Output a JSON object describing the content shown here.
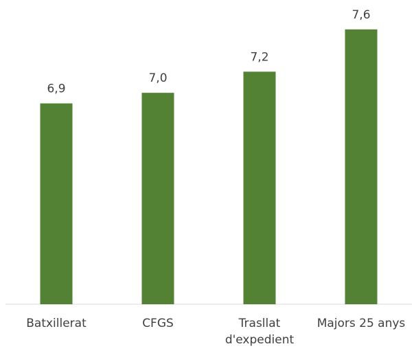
{
  "chart_data": {
    "type": "bar",
    "categories": [
      "Batxillerat",
      "CFGS",
      "Trasllat d'expedient",
      "Majors 25 anys"
    ],
    "values": [
      6.9,
      7.0,
      7.2,
      7.6
    ],
    "value_labels": [
      "6,9",
      "7,0",
      "7,2",
      "7,6"
    ],
    "color": "#548235",
    "ylim": [
      5,
      7.8
    ]
  }
}
